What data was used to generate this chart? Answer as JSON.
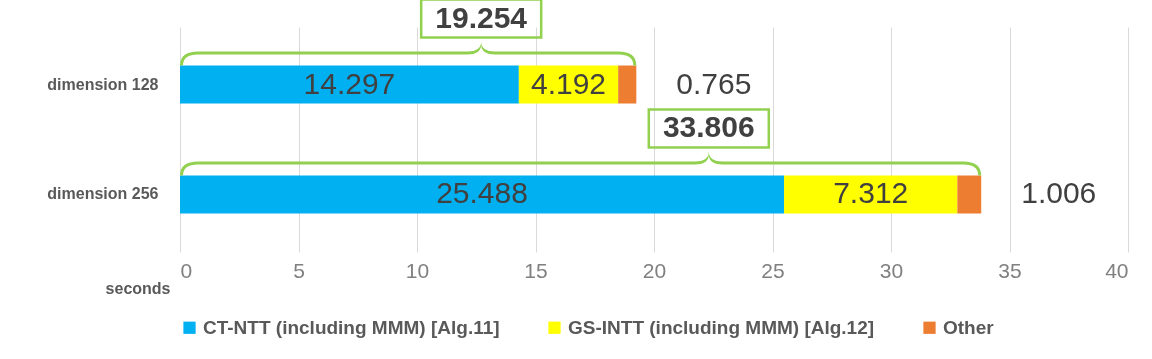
{
  "chart_data": {
    "type": "bar",
    "orientation": "horizontal",
    "stacked": true,
    "xlabel": "seconds",
    "categories": [
      "dimension 128",
      "dimension 256"
    ],
    "series": [
      {
        "name": "CT-NTT (including MMM) [Alg.11]",
        "color": "#00b0f0",
        "values": [
          14.297,
          25.488
        ]
      },
      {
        "name": "GS-INTT (including MMM) [Alg.12]",
        "color": "#ffff00",
        "values": [
          4.192,
          7.312
        ]
      },
      {
        "name": "Other",
        "color": "#ed7d31",
        "values": [
          0.765,
          1.006
        ]
      }
    ],
    "totals": [
      "19.254",
      "33.806"
    ],
    "data_labels": true,
    "xlim": [
      0,
      40
    ],
    "xticks": [
      0,
      5,
      10,
      15,
      20,
      25,
      30,
      35,
      40
    ],
    "grid": "x",
    "legend": "bottom"
  }
}
